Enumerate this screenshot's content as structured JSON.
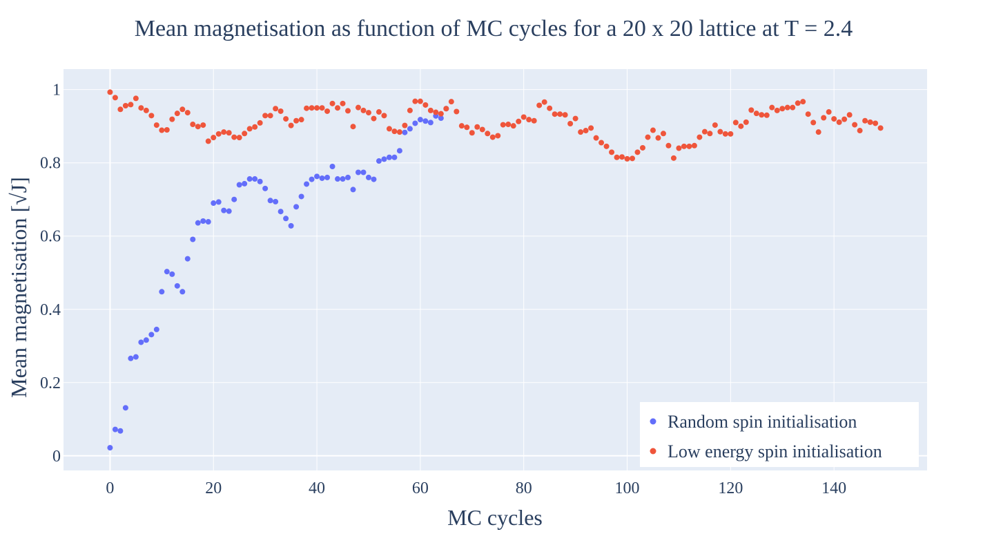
{
  "colors": {
    "plot_bg": "#e5ecf6",
    "grid": "#ffffff",
    "text": "#2a3f5f",
    "random_series": "#636efa",
    "low_energy_series": "#ef553b"
  },
  "chart_data": {
    "type": "scatter",
    "title": "Mean magnetisation as function of MC cycles for a 20 x 20 lattice at T = 2.4",
    "xlabel": "MC cycles",
    "ylabel": "Mean magnetisation [√J]",
    "xlim": [
      -9,
      158
    ],
    "ylim": [
      -0.04,
      1.056
    ],
    "xticks": [
      0,
      20,
      40,
      60,
      80,
      100,
      120,
      140
    ],
    "xtick_labels": [
      "0",
      "20",
      "40",
      "60",
      "80",
      "100",
      "120",
      "140"
    ],
    "yticks": [
      0,
      0.2,
      0.4,
      0.6,
      0.8,
      1
    ],
    "ytick_labels": [
      "0",
      "0.2",
      "0.4",
      "0.6",
      "0.8",
      "1"
    ],
    "grid": true,
    "legend_position": "bottom-right",
    "series": [
      {
        "name": "Random spin initialisation",
        "color": "#636efa",
        "x": [
          0,
          1,
          2,
          3,
          4,
          5,
          6,
          7,
          8,
          9,
          10,
          11,
          12,
          13,
          14,
          15,
          16,
          17,
          18,
          19,
          20,
          21,
          22,
          23,
          24,
          25,
          26,
          27,
          28,
          29,
          30,
          31,
          32,
          33,
          34,
          35,
          36,
          37,
          38,
          39,
          40,
          41,
          42,
          43,
          44,
          45,
          46,
          47,
          48,
          49,
          50,
          51,
          52,
          53,
          54,
          55,
          56,
          57,
          58,
          59,
          60,
          61,
          62,
          63,
          64,
          65
        ],
        "y": [
          0.022,
          0.072,
          0.068,
          0.131,
          0.266,
          0.27,
          0.31,
          0.316,
          0.331,
          0.345,
          0.448,
          0.503,
          0.496,
          0.464,
          0.448,
          0.538,
          0.591,
          0.636,
          0.641,
          0.639,
          0.69,
          0.693,
          0.67,
          0.668,
          0.7,
          0.74,
          0.743,
          0.756,
          0.756,
          0.749,
          0.73,
          0.697,
          0.694,
          0.667,
          0.648,
          0.628,
          0.68,
          0.708,
          0.742,
          0.755,
          0.763,
          0.758,
          0.76,
          0.79,
          0.756,
          0.756,
          0.76,
          0.727,
          0.774,
          0.774,
          0.76,
          0.755,
          0.805,
          0.81,
          0.815,
          0.815,
          0.833,
          0.883,
          0.893,
          0.908,
          0.918,
          0.914,
          0.91,
          0.928,
          0.922,
          0.948
        ]
      },
      {
        "name": "Low energy spin initialisation",
        "color": "#ef553b",
        "x": [
          0,
          1,
          2,
          3,
          4,
          5,
          6,
          7,
          8,
          9,
          10,
          11,
          12,
          13,
          14,
          15,
          16,
          17,
          18,
          19,
          20,
          21,
          22,
          23,
          24,
          25,
          26,
          27,
          28,
          29,
          30,
          31,
          32,
          33,
          34,
          35,
          36,
          37,
          38,
          39,
          40,
          41,
          42,
          43,
          44,
          45,
          46,
          47,
          48,
          49,
          50,
          51,
          52,
          53,
          54,
          55,
          56,
          57,
          58,
          59,
          60,
          61,
          62,
          63,
          64,
          65,
          66,
          67,
          68,
          69,
          70,
          71,
          72,
          73,
          74,
          75,
          76,
          77,
          78,
          79,
          80,
          81,
          82,
          83,
          84,
          85,
          86,
          87,
          88,
          89,
          90,
          91,
          92,
          93,
          94,
          95,
          96,
          97,
          98,
          99,
          100,
          101,
          102,
          103,
          104,
          105,
          106,
          107,
          108,
          109,
          110,
          111,
          112,
          113,
          114,
          115,
          116,
          117,
          118,
          119,
          120,
          121,
          122,
          123,
          124,
          125,
          126,
          127,
          128,
          129,
          130,
          131,
          132,
          133,
          134,
          135,
          136,
          137,
          138,
          139,
          140,
          141,
          142,
          143,
          144,
          145,
          146,
          147,
          148,
          149
        ],
        "y": [
          0.993,
          0.978,
          0.946,
          0.956,
          0.959,
          0.976,
          0.95,
          0.943,
          0.929,
          0.903,
          0.889,
          0.89,
          0.919,
          0.935,
          0.946,
          0.937,
          0.905,
          0.899,
          0.903,
          0.859,
          0.869,
          0.879,
          0.884,
          0.882,
          0.87,
          0.869,
          0.88,
          0.893,
          0.898,
          0.909,
          0.929,
          0.929,
          0.948,
          0.941,
          0.92,
          0.902,
          0.915,
          0.918,
          0.949,
          0.95,
          0.95,
          0.95,
          0.941,
          0.962,
          0.95,
          0.962,
          0.942,
          0.899,
          0.951,
          0.943,
          0.937,
          0.921,
          0.939,
          0.929,
          0.893,
          0.886,
          0.884,
          0.902,
          0.943,
          0.968,
          0.968,
          0.958,
          0.943,
          0.938,
          0.934,
          0.948,
          0.967,
          0.94,
          0.901,
          0.897,
          0.882,
          0.898,
          0.891,
          0.88,
          0.87,
          0.874,
          0.904,
          0.905,
          0.901,
          0.913,
          0.925,
          0.918,
          0.915,
          0.957,
          0.966,
          0.949,
          0.933,
          0.933,
          0.931,
          0.907,
          0.921,
          0.884,
          0.888,
          0.895,
          0.868,
          0.855,
          0.845,
          0.829,
          0.815,
          0.816,
          0.811,
          0.812,
          0.829,
          0.841,
          0.87,
          0.889,
          0.868,
          0.88,
          0.847,
          0.813,
          0.84,
          0.845,
          0.845,
          0.847,
          0.87,
          0.885,
          0.88,
          0.903,
          0.885,
          0.879,
          0.879,
          0.91,
          0.9,
          0.911,
          0.944,
          0.935,
          0.931,
          0.93,
          0.951,
          0.943,
          0.948,
          0.951,
          0.951,
          0.963,
          0.967,
          0.933,
          0.91,
          0.884,
          0.923,
          0.939,
          0.92,
          0.911,
          0.919,
          0.931,
          0.904,
          0.888,
          0.915,
          0.911,
          0.908,
          0.895
        ]
      }
    ]
  }
}
